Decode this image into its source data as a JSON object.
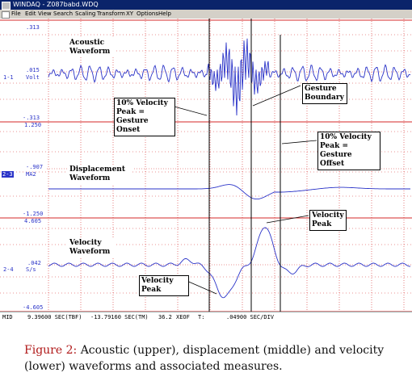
{
  "window": {
    "title": "WINDAQ - Z087babd.WDQ"
  },
  "menu": [
    "File",
    "Edit",
    "View",
    "Search",
    "Scaling",
    "Transform",
    "XY",
    "Options",
    "Help"
  ],
  "channels": {
    "acoustic": {
      "top": ".313",
      "mid": ".015",
      "unit": "Volt",
      "id": "1-1",
      "bottom": "-.313"
    },
    "displacement": {
      "top": "1.250",
      "mid": "-.907",
      "unit": "MA2",
      "id": "2-3",
      "bottom": "-1.250"
    },
    "velocity": {
      "top": "4.605",
      "mid": ".042",
      "unit": "S/s",
      "id": "2-4",
      "bottom": "-4.605"
    }
  },
  "labels": {
    "acoustic": "Acoustic Waveform",
    "displacement": "Displacement Waveform",
    "velocity": "Velocity Waveform",
    "onset": "10% Velocity Peak = Gesture Onset",
    "boundary": "Gesture Boundary",
    "offset": "10% Velocity Peak = Gesture Offset",
    "velpeak_upper": "Velocity Peak",
    "velpeak_lower": "Velocity Peak"
  },
  "status": {
    "mid": "MID",
    "a": "9.39600 SEC(TBF)",
    "b": "-13.79160 SEC(TM)",
    "c": "36.2",
    "d": "XEOF",
    "e": "T:",
    "f": ".04900 SEC/DIV"
  },
  "caption": {
    "figure": "Figure 2:",
    "text": "Acoustic (upper), displacement (middle) and velocity (lower) waveforms and associated measures."
  },
  "colors": {
    "trace": "#2a33c8",
    "grid": "#d62828",
    "menu": "#d4d0c8",
    "titlebar": "#0a246a"
  }
}
